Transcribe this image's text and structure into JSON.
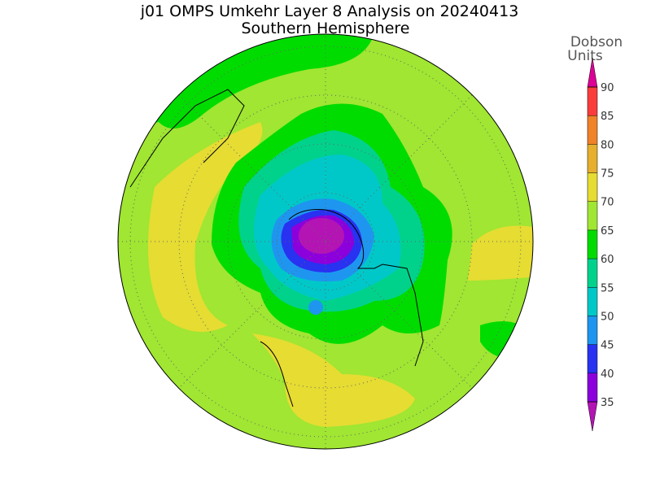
{
  "header": {
    "title": "j01 OMPS Umkehr Layer 8 Analysis on 20240413",
    "subtitle": "Southern Hemisphere"
  },
  "colorbar": {
    "label": [
      "Dobson",
      "Units"
    ],
    "ticks": [
      35,
      40,
      45,
      50,
      55,
      60,
      65,
      70,
      75,
      80,
      85,
      90
    ],
    "colors": [
      "#b414b4",
      "#8c00dc",
      "#2832f0",
      "#1e96f0",
      "#00c8c8",
      "#00d28c",
      "#00dc00",
      "#a0e632",
      "#e6dc32",
      "#e6af2d",
      "#f08228",
      "#fa3c3c",
      "#dc0096"
    ]
  }
}
